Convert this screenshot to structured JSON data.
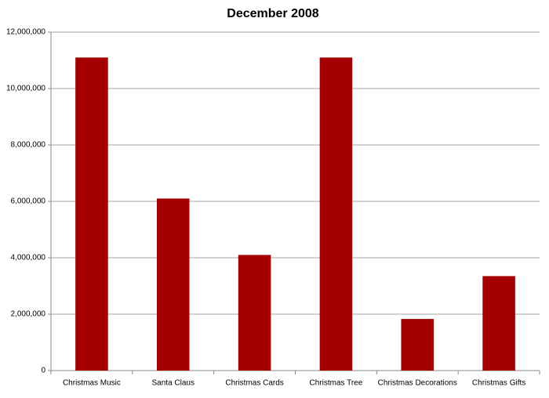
{
  "chart_data": {
    "type": "bar",
    "title": "December 2008",
    "categories": [
      "Christmas Music",
      "Santa Claus",
      "Christmas Cards",
      "Christmas Tree",
      "Christmas Decorations",
      "Christmas Gifts"
    ],
    "values": [
      11100000,
      6100000,
      4100000,
      11100000,
      1830000,
      3350000
    ],
    "color": "#a50000",
    "ylim": [
      0,
      12000000
    ],
    "yticks": [
      0,
      {
        "value": 2000000,
        "label": "2,000,000"
      },
      {
        "value": 4000000,
        "label": "4,000,000"
      },
      {
        "value": 6000000,
        "label": "6,000,000"
      },
      {
        "value": 8000000,
        "label": "8,000,000"
      },
      {
        "value": 10000000,
        "label": "10,000,000"
      },
      {
        "value": 12000000,
        "label": "12,000,000"
      }
    ],
    "grid": true
  }
}
